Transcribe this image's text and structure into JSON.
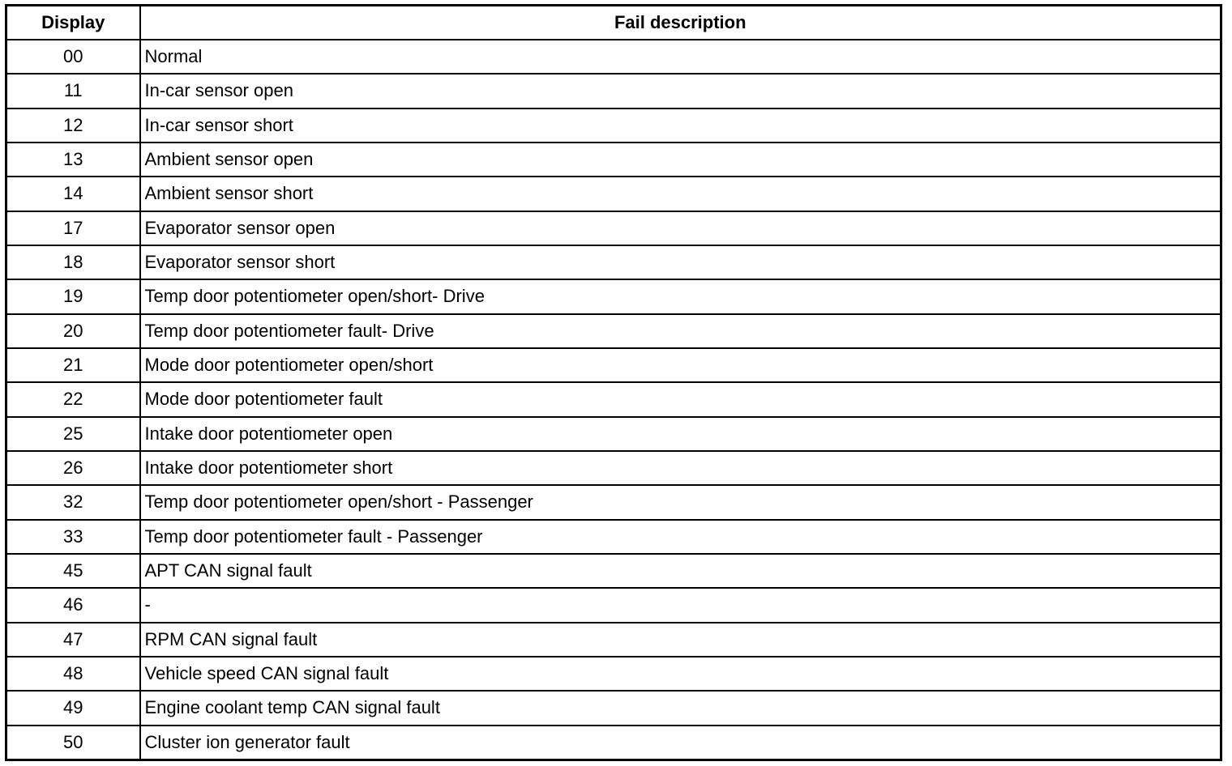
{
  "table": {
    "headers": [
      "Display",
      "Fail description"
    ],
    "rows": [
      {
        "display": "00",
        "description": "Normal"
      },
      {
        "display": "11",
        "description": "In-car sensor open"
      },
      {
        "display": "12",
        "description": "In-car sensor short"
      },
      {
        "display": "13",
        "description": "Ambient sensor open"
      },
      {
        "display": "14",
        "description": "Ambient sensor short"
      },
      {
        "display": "17",
        "description": "Evaporator sensor open"
      },
      {
        "display": "18",
        "description": "Evaporator sensor short"
      },
      {
        "display": "19",
        "description": "Temp door potentiometer open/short- Drive"
      },
      {
        "display": "20",
        "description": "Temp door potentiometer fault- Drive"
      },
      {
        "display": "21",
        "description": "Mode door potentiometer open/short"
      },
      {
        "display": "22",
        "description": "Mode door potentiometer fault"
      },
      {
        "display": "25",
        "description": "Intake door potentiometer open"
      },
      {
        "display": "26",
        "description": "Intake door potentiometer short"
      },
      {
        "display": "32",
        "description": "Temp door potentiometer open/short - Passenger"
      },
      {
        "display": "33",
        "description": "Temp door potentiometer fault - Passenger"
      },
      {
        "display": "45",
        "description": "APT CAN signal fault"
      },
      {
        "display": "46",
        "description": "-"
      },
      {
        "display": "47",
        "description": "RPM CAN signal fault"
      },
      {
        "display": "48",
        "description": "Vehicle speed CAN signal fault"
      },
      {
        "display": "49",
        "description": "Engine coolant temp CAN signal fault"
      },
      {
        "display": "50",
        "description": "Cluster ion generator fault"
      }
    ]
  }
}
